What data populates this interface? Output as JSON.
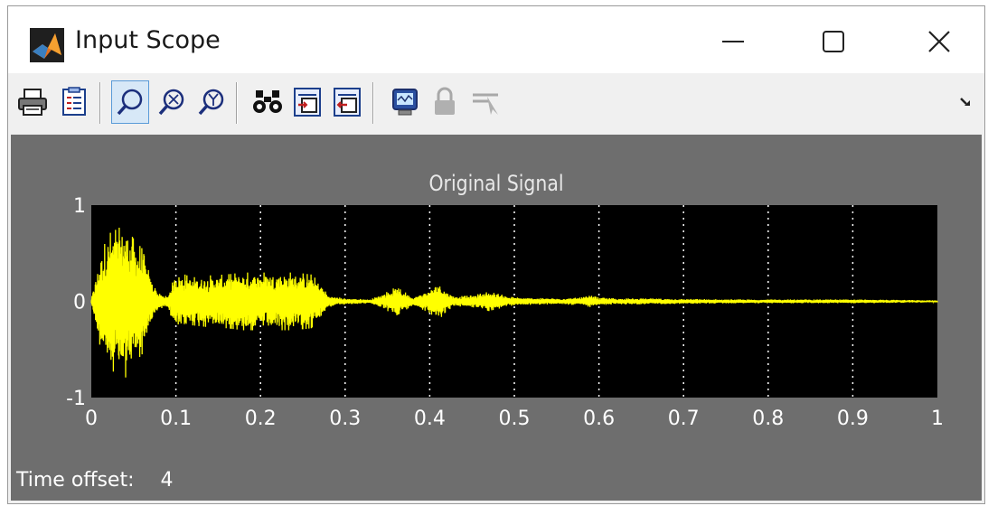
{
  "window": {
    "title": "Input Scope",
    "icon": "matlab-logo-icon",
    "controls": [
      "minimize-icon",
      "maximize-icon",
      "close-icon"
    ]
  },
  "toolbar": {
    "buttons": [
      {
        "name": "print-icon"
      },
      {
        "name": "parameters-icon"
      },
      {
        "name": "zoom-icon",
        "pressed": true
      },
      {
        "name": "zoom-x-icon"
      },
      {
        "name": "zoom-y-icon"
      },
      {
        "name": "autoscale-icon"
      },
      {
        "name": "save-axes-settings-icon"
      },
      {
        "name": "restore-axes-settings-icon"
      },
      {
        "name": "floating-scope-icon"
      },
      {
        "name": "lock-axes-icon",
        "disabled": true
      },
      {
        "name": "signal-selection-icon",
        "disabled": true
      }
    ],
    "overflow": "overflow-arrow-icon"
  },
  "scope": {
    "background": "#6e6e6e",
    "time_offset_label": "Time offset:",
    "time_offset_value": "4"
  },
  "chart_data": {
    "type": "line",
    "title": "Original Signal",
    "xlabel": "",
    "ylabel": "",
    "xlim": [
      0,
      1
    ],
    "ylim": [
      -1,
      1
    ],
    "x_ticks": [
      "0",
      "0.1",
      "0.2",
      "0.3",
      "0.4",
      "0.5",
      "0.6",
      "0.7",
      "0.8",
      "0.9",
      "1"
    ],
    "y_ticks": [
      "-1",
      "0",
      "1"
    ],
    "grid": true,
    "line_color": "#ffff00",
    "plot_background": "#000000",
    "envelope": {
      "x": [
        0.0,
        0.01,
        0.02,
        0.03,
        0.04,
        0.05,
        0.06,
        0.07,
        0.08,
        0.09,
        0.1,
        0.11,
        0.12,
        0.14,
        0.16,
        0.18,
        0.2,
        0.22,
        0.24,
        0.26,
        0.27,
        0.28,
        0.3,
        0.33,
        0.35,
        0.36,
        0.37,
        0.38,
        0.4,
        0.41,
        0.42,
        0.43,
        0.45,
        0.47,
        0.5,
        0.55,
        0.58,
        0.59,
        0.6,
        0.62,
        0.65,
        0.7,
        0.75,
        0.8,
        0.85,
        0.9,
        0.95,
        1.0
      ],
      "amplitude": [
        0.02,
        0.45,
        0.7,
        0.75,
        0.8,
        0.65,
        0.55,
        0.25,
        0.08,
        0.05,
        0.3,
        0.28,
        0.25,
        0.27,
        0.28,
        0.3,
        0.3,
        0.3,
        0.3,
        0.28,
        0.2,
        0.06,
        0.03,
        0.02,
        0.1,
        0.15,
        0.1,
        0.04,
        0.12,
        0.2,
        0.1,
        0.05,
        0.06,
        0.1,
        0.04,
        0.03,
        0.04,
        0.06,
        0.04,
        0.03,
        0.03,
        0.025,
        0.02,
        0.02,
        0.02,
        0.02,
        0.015,
        0.01
      ]
    }
  }
}
